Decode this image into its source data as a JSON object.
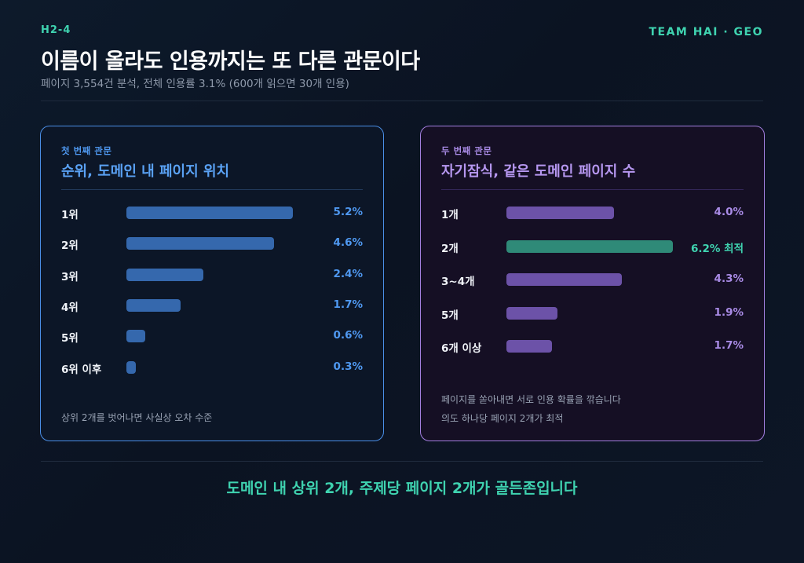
{
  "header": {
    "section_code": "H2-4",
    "brand": "TEAM HAI · GEO",
    "title": "이름이 올라도 인용까지는 또 다른 관문이다",
    "subtitle": "페이지 3,554건 분석, 전체 인용률 3.1% (600개 읽으면 30개 인용)"
  },
  "left_panel": {
    "kicker": "첫 번째 관문",
    "heading": "순위, 도메인 내 페이지 위치",
    "note": "상위 2개를 벗어나면 사실상 오차 수준"
  },
  "right_panel": {
    "kicker": "두 번째 관문",
    "heading": "자기잠식, 같은 도메인 페이지 수",
    "note_line1": "페이지를 쏟아내면 서로 인용 확률을 깎습니다",
    "note_line2": "의도 하나당 페이지 2개가 최적"
  },
  "conclusion": "도메인 내 상위 2개, 주제당 페이지 2개가 골든존입니다",
  "colors": {
    "accent_teal": "#3fd3b0",
    "left_blue": "#4f98f0",
    "right_purple": "#a98be6",
    "best_green": "#2f8a78"
  },
  "chart_data": [
    {
      "type": "bar",
      "orientation": "horizontal",
      "title": "순위, 도메인 내 페이지 위치",
      "categories": [
        "1위",
        "2위",
        "3위",
        "4위",
        "5위",
        "6위 이후"
      ],
      "values": [
        5.2,
        4.6,
        2.4,
        1.7,
        0.6,
        0.3
      ],
      "value_labels": [
        "5.2%",
        "4.6%",
        "2.4%",
        "1.7%",
        "0.6%",
        "0.3%"
      ],
      "unit": "%",
      "xlim": [
        0,
        5.2
      ],
      "grid": false,
      "legend": "none"
    },
    {
      "type": "bar",
      "orientation": "horizontal",
      "title": "자기잠식, 같은 도메인 페이지 수",
      "categories": [
        "1개",
        "2개",
        "3~4개",
        "5개",
        "6개 이상"
      ],
      "values": [
        4.0,
        6.2,
        4.3,
        1.9,
        1.7
      ],
      "value_labels": [
        "4.0%",
        "6.2% 최적",
        "4.3%",
        "1.9%",
        "1.7%"
      ],
      "highlight_index": 1,
      "unit": "%",
      "xlim": [
        0,
        6.2
      ],
      "grid": false,
      "legend": "none"
    }
  ]
}
